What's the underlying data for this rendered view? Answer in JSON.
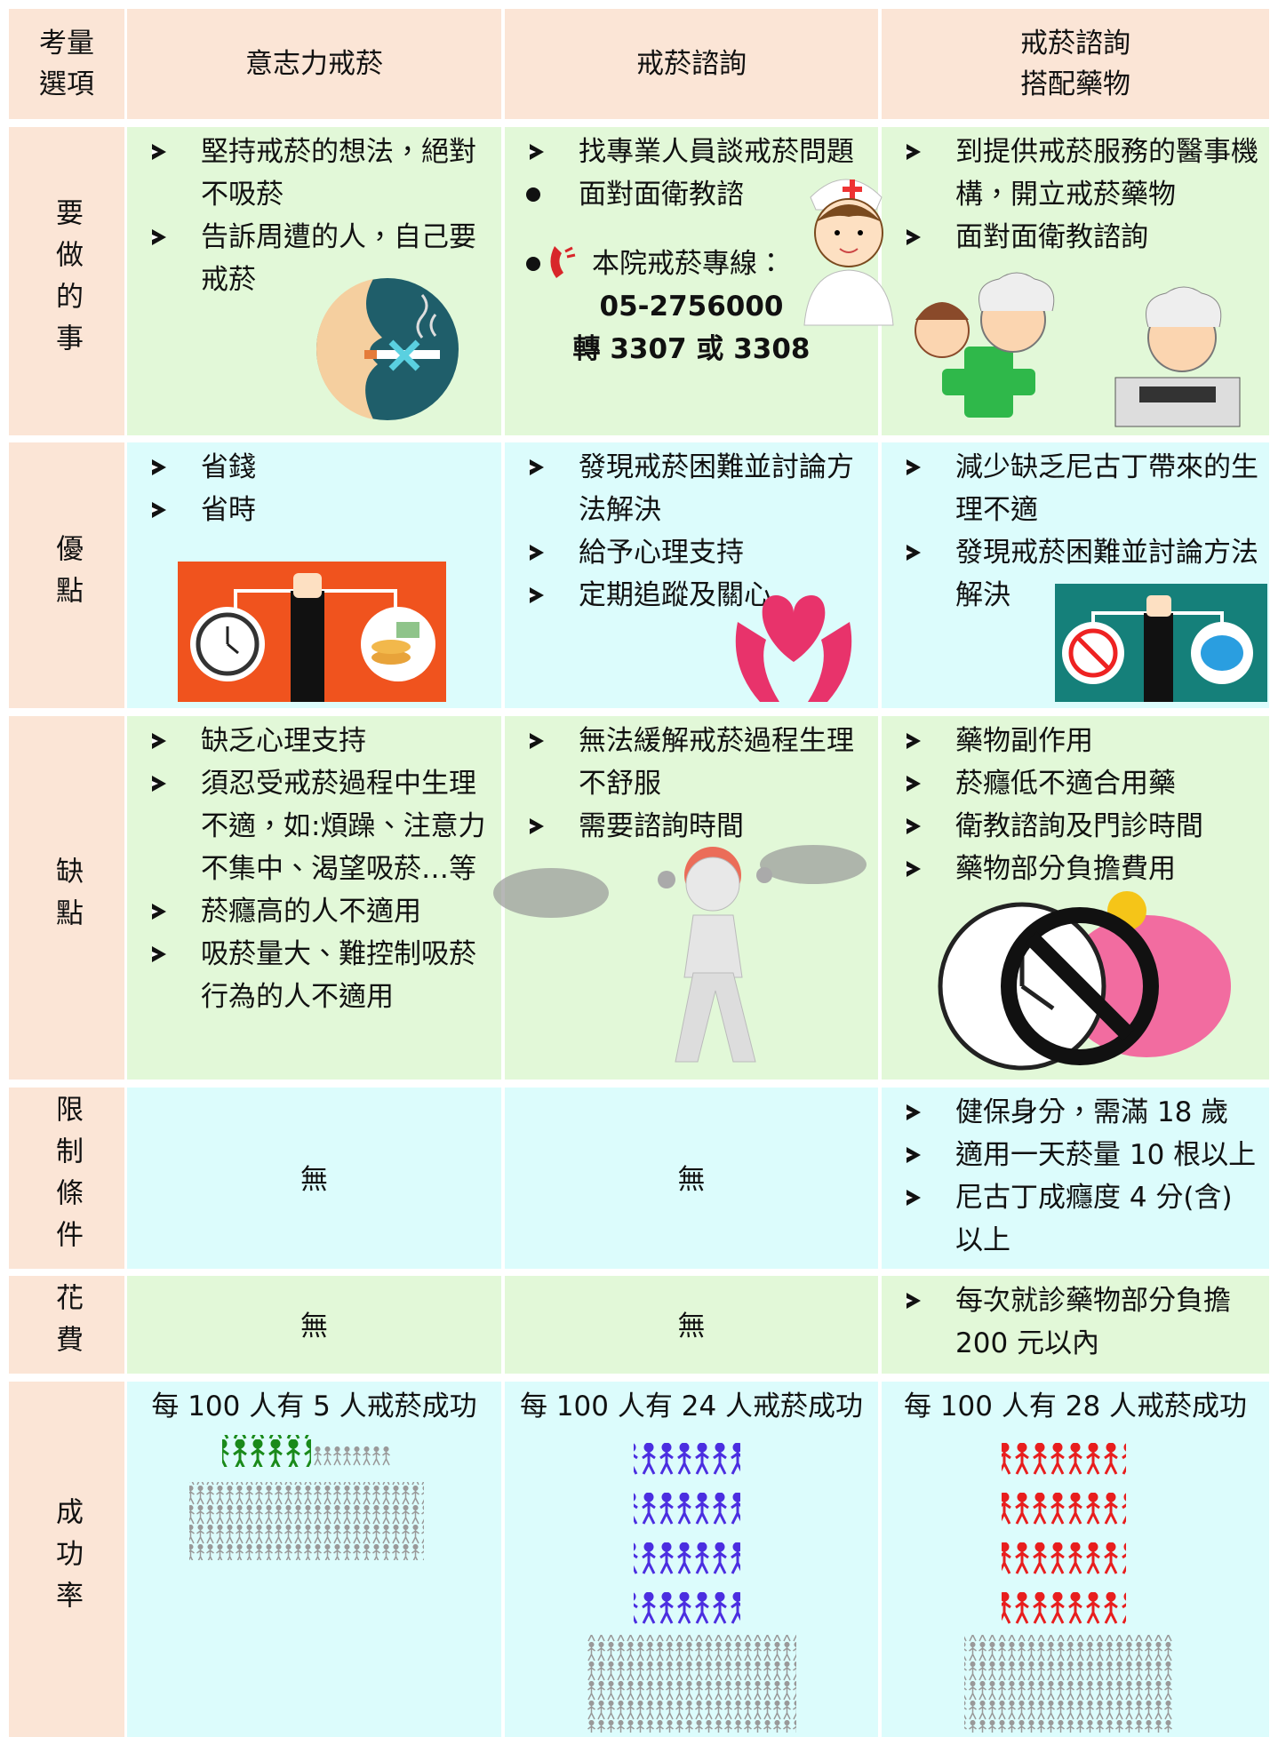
{
  "header": {
    "cells": [
      [
        "考量",
        "選項"
      ],
      [
        "意志力戒菸"
      ],
      [
        "戒菸諮詢"
      ],
      [
        "戒菸諮詢",
        "搭配藥物"
      ]
    ]
  },
  "rows": [
    {
      "label": "要做的事",
      "cells": [
        {
          "items": [
            "堅持戒菸的想法，絕對不吸菸",
            "告訴周遭的人，自己要戒菸"
          ]
        },
        {
          "items": [
            "找專業人員談戒菸問題"
          ],
          "dots": [
            "面對面衛教諮",
            "本院戒菸專線："
          ],
          "lines": [
            "05-2756000",
            "轉 3307 或 3308"
          ]
        },
        {
          "items": [
            "到提供戒菸服務的醫事機構，開立戒菸藥物",
            "面對面衛教諮詢"
          ]
        }
      ]
    },
    {
      "label": "優點",
      "cells": [
        {
          "items": [
            "省錢",
            "省時"
          ]
        },
        {
          "items": [
            "發現戒菸困難並討論方法解決",
            "給予心理支持",
            "定期追蹤及關心"
          ]
        },
        {
          "items": [
            "減少缺乏尼古丁帶來的生理不適",
            "發現戒菸困難並討論方法解決"
          ]
        }
      ]
    },
    {
      "label": "缺點",
      "cells": [
        {
          "items": [
            "缺乏心理支持",
            "須忍受戒菸過程中生理不適，如:煩躁、注意力不集中、渴望吸菸…等",
            "菸癮高的人不適用",
            "吸菸量大、難控制吸菸行為的人不適用"
          ]
        },
        {
          "items": [
            "無法緩解戒菸過程生理不舒服",
            "需要諮詢時間"
          ]
        },
        {
          "items": [
            "藥物副作用",
            "菸癮低不適合用藥",
            "衛教諮詢及門診時間",
            "藥物部分負擔費用"
          ]
        }
      ]
    },
    {
      "label": "限制條件",
      "cells": [
        {
          "text": "無"
        },
        {
          "text": "無"
        },
        {
          "items": [
            "健保身分，需滿 18 歲",
            "適用一天菸量 10 根以上",
            "尼古丁成癮度 4 分(含)以上"
          ]
        }
      ]
    },
    {
      "label": "花費",
      "cells": [
        {
          "text": "無"
        },
        {
          "text": "無"
        },
        {
          "items": [
            "每次就診藥物部分負擔 200 元以內"
          ]
        }
      ]
    },
    {
      "label": "成功率",
      "cells": [
        {
          "top": "每 100 人有 5 人戒菸成功"
        },
        {
          "top": "每 100 人有 24 人戒菸成功"
        },
        {
          "top": "每 100 人有 28 人戒菸成功"
        }
      ]
    }
  ]
}
